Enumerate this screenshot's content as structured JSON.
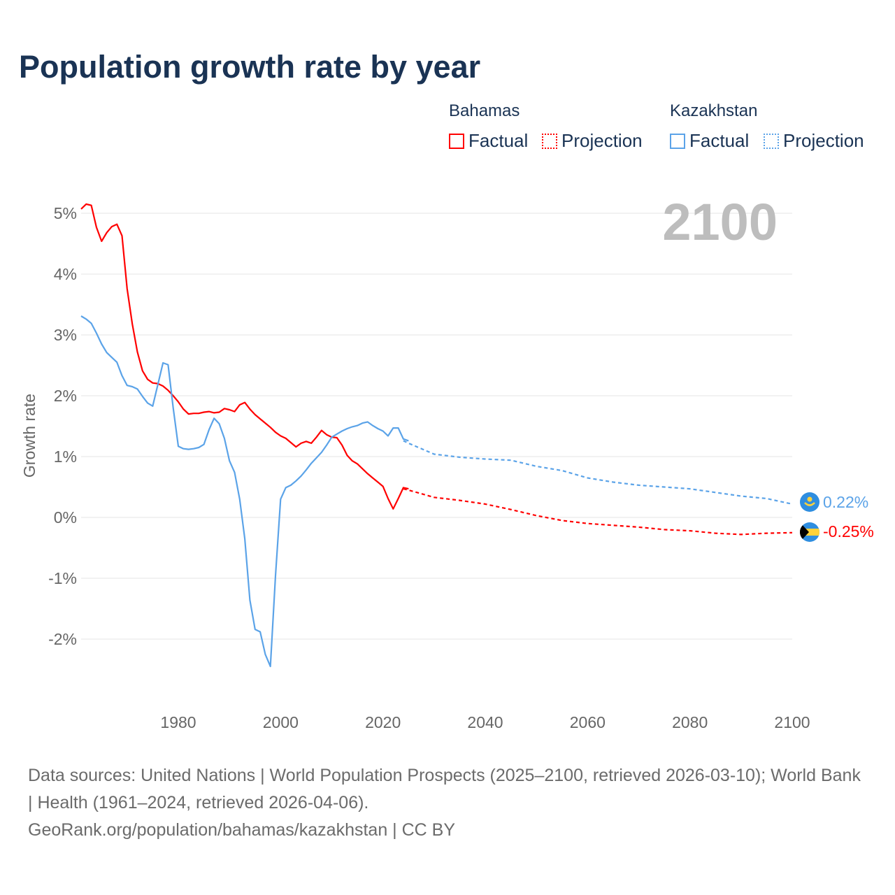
{
  "title": "Population growth rate by year",
  "legend": {
    "groups": [
      {
        "country": "Bahamas",
        "factual": "Factual",
        "projection": "Projection",
        "color": "#ff0000"
      },
      {
        "country": "Kazakhstan",
        "factual": "Factual",
        "projection": "Projection",
        "color": "#5ba3e8"
      }
    ]
  },
  "year_watermark": "2100",
  "end_labels": {
    "kazakhstan": "0.22%",
    "bahamas": "-0.25%"
  },
  "footer": {
    "sources": "Data sources: United Nations | World Population Prospects (2025–2100, retrieved 2026-03-10); World Bank | Health (1961–2024, retrieved 2026-04-06).",
    "credit": "GeoRank.org/population/bahamas/kazakhstan | CC BY"
  },
  "chart_data": {
    "type": "line",
    "title": "Population growth rate by year",
    "xlabel": "",
    "ylabel": "Growth rate",
    "xlim": [
      1961,
      2100
    ],
    "ylim": [
      -3,
      5.5
    ],
    "x_ticks": [
      1980,
      2000,
      2020,
      2040,
      2060,
      2080,
      2100
    ],
    "x_tick_labels": [
      "1980",
      "2000",
      "2020",
      "2040",
      "2060",
      "2080",
      "2100"
    ],
    "y_ticks": [
      5,
      4,
      3,
      2,
      1,
      0,
      -1,
      -2
    ],
    "y_tick_labels": [
      "5%",
      "4%",
      "3%",
      "2%",
      "1%",
      "0%",
      "-1%",
      "-2%"
    ],
    "grid": true,
    "legend_position": "top-right",
    "series": [
      {
        "name": "Bahamas Factual",
        "color": "#ff0000",
        "style": "solid",
        "start_year": 1961,
        "values": [
          5.07,
          5.15,
          5.13,
          4.77,
          4.54,
          4.68,
          4.78,
          4.82,
          4.63,
          3.76,
          3.18,
          2.72,
          2.41,
          2.27,
          2.21,
          2.2,
          2.16,
          2.09,
          2.0,
          1.9,
          1.78,
          1.7,
          1.71,
          1.71,
          1.73,
          1.74,
          1.72,
          1.73,
          1.79,
          1.77,
          1.74,
          1.85,
          1.89,
          1.78,
          1.69,
          1.62,
          1.55,
          1.48,
          1.4,
          1.34,
          1.3,
          1.23,
          1.16,
          1.22,
          1.25,
          1.22,
          1.32,
          1.43,
          1.36,
          1.32,
          1.31,
          1.19,
          1.02,
          0.93,
          0.88,
          0.8,
          0.72,
          0.65,
          0.58,
          0.51,
          0.31,
          0.14,
          0.31,
          0.49,
          0.47
        ]
      },
      {
        "name": "Bahamas Projection",
        "color": "#ff0000",
        "style": "dotted",
        "x": [
          2024,
          2025,
          2030,
          2035,
          2040,
          2045,
          2050,
          2055,
          2060,
          2065,
          2070,
          2075,
          2080,
          2085,
          2090,
          2095,
          2100
        ],
        "values": [
          0.47,
          0.45,
          0.33,
          0.28,
          0.22,
          0.13,
          0.03,
          -0.05,
          -0.1,
          -0.13,
          -0.16,
          -0.2,
          -0.22,
          -0.26,
          -0.28,
          -0.26,
          -0.25
        ]
      },
      {
        "name": "Kazakhstan Factual",
        "color": "#5ba3e8",
        "style": "solid",
        "start_year": 1961,
        "values": [
          3.31,
          3.26,
          3.19,
          3.03,
          2.85,
          2.71,
          2.63,
          2.55,
          2.33,
          2.17,
          2.15,
          2.11,
          1.99,
          1.88,
          1.83,
          2.18,
          2.54,
          2.51,
          1.8,
          1.17,
          1.13,
          1.12,
          1.13,
          1.15,
          1.2,
          1.44,
          1.63,
          1.54,
          1.3,
          0.93,
          0.74,
          0.3,
          -0.35,
          -1.36,
          -1.84,
          -1.88,
          -2.25,
          -2.45,
          -0.96,
          0.3,
          0.49,
          0.53,
          0.6,
          0.68,
          0.78,
          0.89,
          0.98,
          1.07,
          1.19,
          1.32,
          1.37,
          1.42,
          1.46,
          1.49,
          1.51,
          1.55,
          1.57,
          1.51,
          1.46,
          1.42,
          1.34,
          1.47,
          1.47,
          1.29,
          1.26
        ]
      },
      {
        "name": "Kazakhstan Projection",
        "color": "#5ba3e8",
        "style": "dotted",
        "x": [
          2024,
          2025,
          2030,
          2035,
          2040,
          2045,
          2050,
          2055,
          2060,
          2065,
          2070,
          2075,
          2080,
          2085,
          2090,
          2095,
          2100
        ],
        "values": [
          1.26,
          1.22,
          1.04,
          0.99,
          0.96,
          0.94,
          0.84,
          0.77,
          0.65,
          0.58,
          0.53,
          0.5,
          0.47,
          0.41,
          0.35,
          0.31,
          0.22
        ]
      }
    ]
  }
}
